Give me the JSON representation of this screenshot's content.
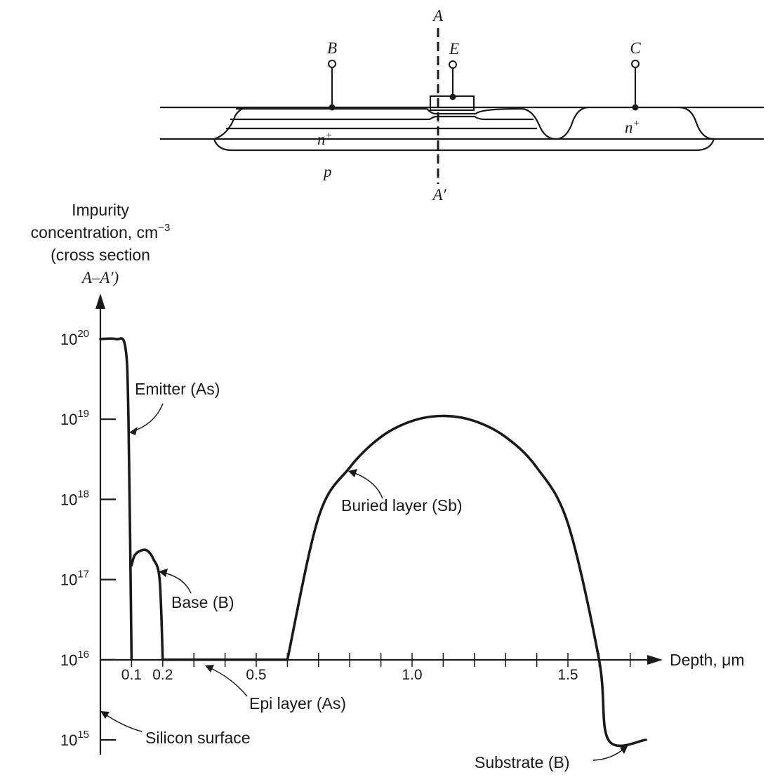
{
  "cross_section": {
    "cut_top": "A",
    "cut_bottom": "A′",
    "terminal_base": "B",
    "terminal_emitter": "E",
    "terminal_collector": "C",
    "region_buried": "n",
    "region_collector_contact": "n",
    "region_plus": "+",
    "region_substrate": "p"
  },
  "axes": {
    "y_label_line1": "Impurity",
    "y_label_line2": "concentration, cm",
    "y_label_exp": "−3",
    "y_label_line3": "(cross section",
    "y_label_line4": "A–A′)",
    "x_label": "Depth, μm",
    "y_tick_base": "10",
    "y_tick_exponents": [
      "20",
      "19",
      "18",
      "17",
      "16",
      "15"
    ],
    "x_tick_labels": [
      "0.1",
      "0.2",
      "0.5",
      "1.0",
      "1.5"
    ]
  },
  "annotations": {
    "emitter": "Emitter (As)",
    "base": "Base (B)",
    "buried": "Buried layer (Sb)",
    "epi": "Epi layer (As)",
    "surface": "Silicon surface",
    "substrate": "Substrate (B)"
  },
  "chart_data": {
    "type": "line",
    "y_scale": "log",
    "ylim": [
      1000000000000000.0,
      1e+20
    ],
    "xlim": [
      0,
      1.75
    ],
    "series": [
      {
        "x": [
          0,
          0.05,
          0.08,
          0.09,
          0.1
        ],
        "y": [
          1e+20,
          1e+20,
          8e+19,
          1e+19,
          1e+16
        ]
      },
      {
        "x": [
          0.1,
          0.11,
          0.13,
          0.15,
          0.17,
          0.19,
          0.2
        ],
        "y": [
          1.5e+17,
          2e+17,
          2.3e+17,
          2.3e+17,
          1.8e+17,
          1e+17,
          1e+16
        ]
      },
      {
        "x": [
          0.2,
          0.6
        ],
        "y": [
          1e+16,
          1e+16
        ]
      },
      {
        "x": [
          0.6,
          0.7,
          0.8,
          0.9,
          1.0,
          1.1,
          1.2,
          1.3,
          1.4,
          1.5,
          1.6,
          1.63,
          1.75
        ],
        "y": [
          1e+16,
          6e+17,
          2.5e+18,
          6e+18,
          9.5e+18,
          1.1e+19,
          9.5e+18,
          6e+18,
          2.5e+18,
          5e+17,
          1e+16,
          1000000000000000.0,
          1000000000000000.0
        ]
      }
    ]
  }
}
